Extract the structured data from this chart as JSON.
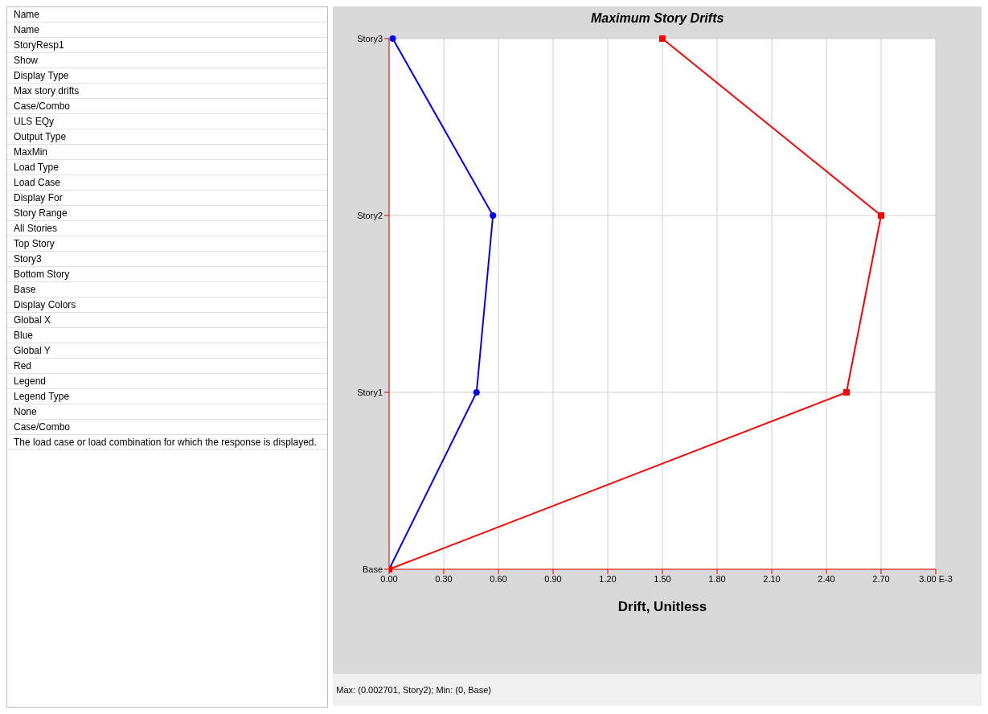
{
  "chart_data": [
    {
      "type": "other",
      "annotations": [
        "Name",
        "Name",
        "StoryResp1",
        "Show",
        "Display Type",
        "Max story drifts",
        "Case/Combo",
        "ULS EQy",
        "Output Type",
        "MaxMin",
        "Load Type",
        "Load Case",
        "Display For",
        "Story Range",
        "All Stories",
        "Top Story",
        "Story3",
        "Bottom Story",
        "Base",
        "Display Colors",
        "Global X",
        "Blue",
        "Global Y",
        "Red",
        "Legend",
        "Legend Type",
        "None",
        "Case/Combo",
        "The load case or load combination for which the response is displayed."
      ]
    },
    {
      "type": "line",
      "orientation": "horizontal",
      "title": "Maximum Story Drifts",
      "xlabel": "Drift, Unitless",
      "categories": [
        "Story3",
        "Story2",
        "Story1",
        "Base"
      ],
      "series": [
        {
          "color": "#0000ff",
          "marker": "circle",
          "values": [
            0.02,
            0.57,
            0.48,
            0
          ]
        },
        {
          "color": "#ff0000",
          "marker": "square",
          "values": [
            1.5,
            2.7,
            2.51,
            0
          ]
        }
      ],
      "xlim": [
        0,
        3
      ],
      "xticks": [
        {
          "value": 0,
          "label": "0.00"
        },
        {
          "value": 0.3,
          "label": "0.30"
        },
        {
          "value": 0.6,
          "label": "0.60"
        },
        {
          "value": 0.9,
          "label": "0.90"
        },
        {
          "value": 1.2,
          "label": "1.20"
        },
        {
          "value": 1.5,
          "label": "1.50"
        },
        {
          "value": 1.8,
          "label": "1.80"
        },
        {
          "value": 2.1,
          "label": "2.10"
        },
        {
          "value": 2.4,
          "label": "2.40"
        },
        {
          "value": 2.7,
          "label": "2.70"
        },
        {
          "value": 3,
          "label": "3.00 E-3"
        }
      ],
      "grid": true,
      "annotations": [
        "Max: (0.002701, Story2);  Min: (0, Base)"
      ]
    }
  ]
}
